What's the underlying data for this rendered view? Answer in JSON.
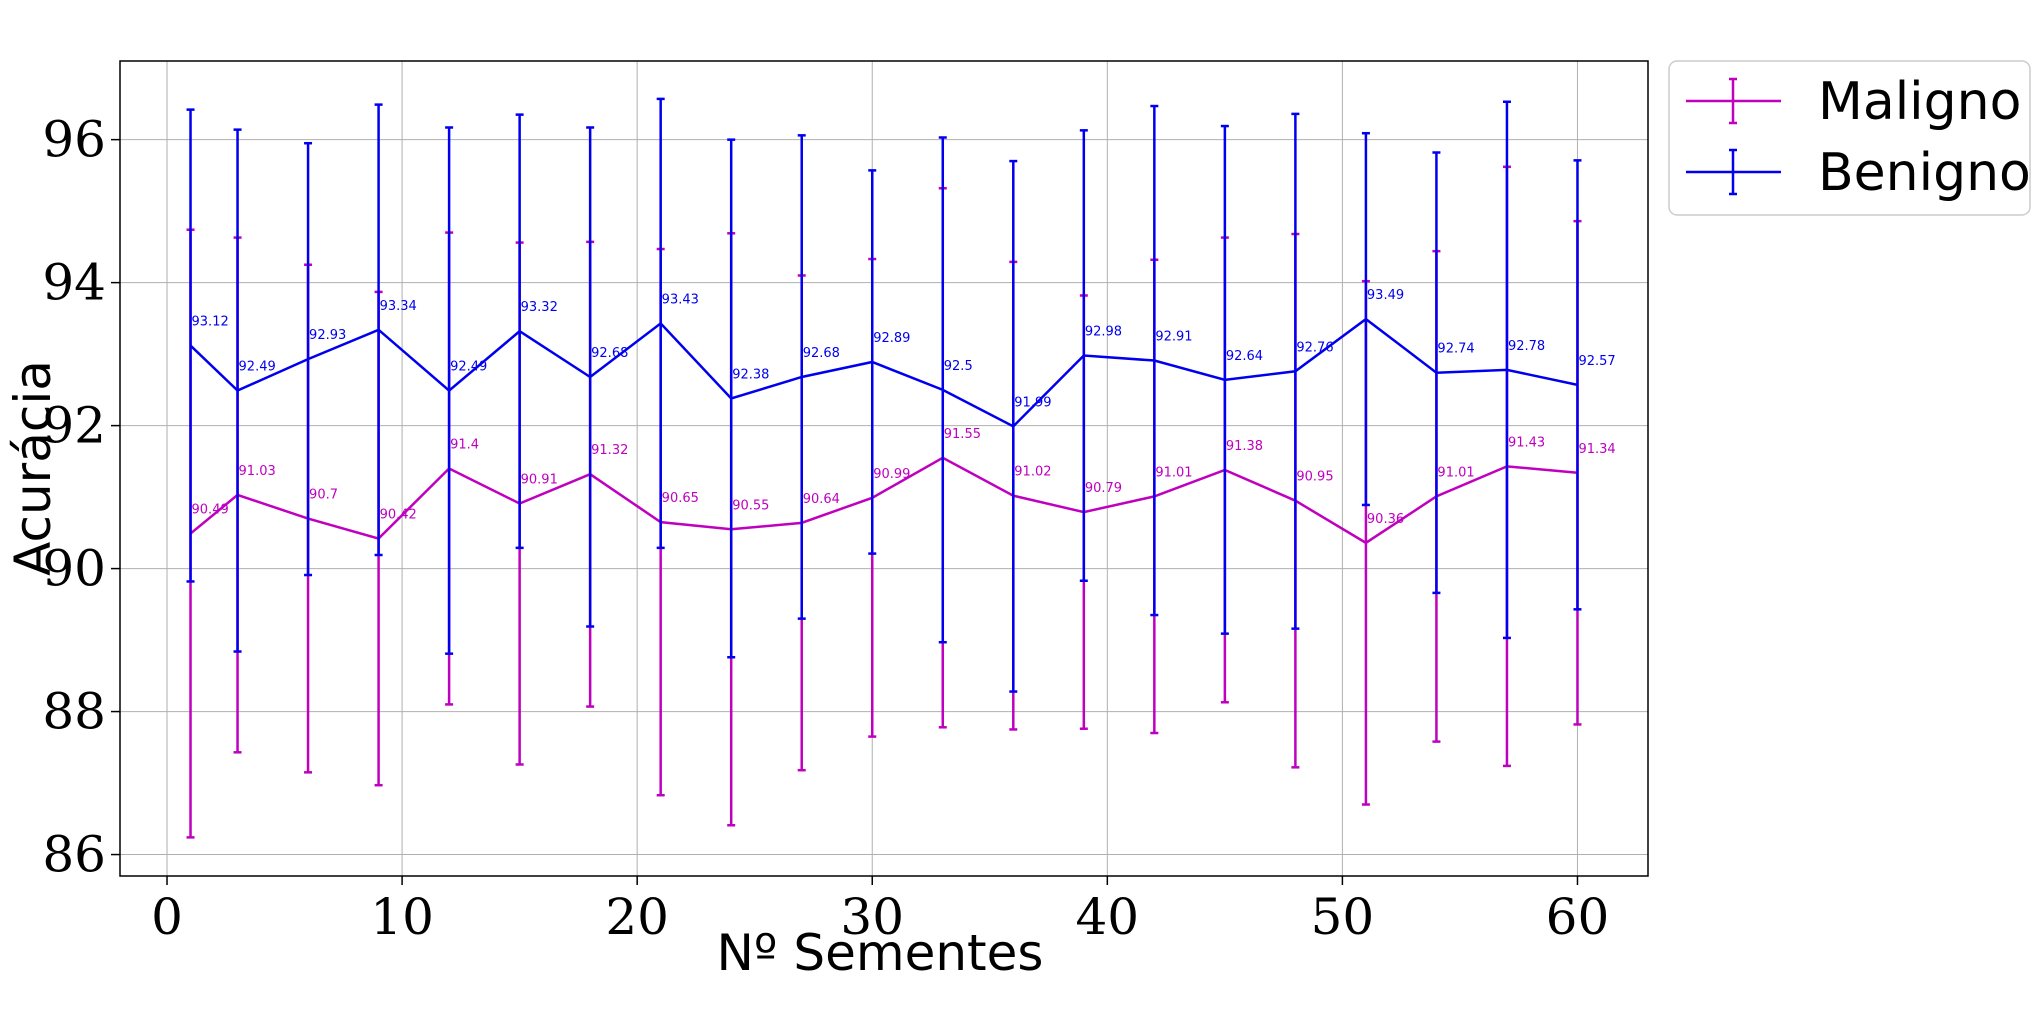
{
  "chart_data": {
    "type": "line",
    "xlabel": "Nº Sementes",
    "ylabel": "Acurácia",
    "xlim": [
      -2,
      63
    ],
    "ylim": [
      85.7,
      97.1
    ],
    "xticks": [
      0,
      10,
      20,
      30,
      40,
      50,
      60
    ],
    "yticks": [
      86,
      88,
      90,
      92,
      94,
      96
    ],
    "grid": true,
    "legend_position": "outside-top-right",
    "x": [
      1,
      3,
      6,
      9,
      12,
      15,
      18,
      21,
      24,
      27,
      30,
      33,
      36,
      39,
      42,
      45,
      48,
      51,
      54,
      57,
      60
    ],
    "series": [
      {
        "name": "Maligno",
        "color": "#bf00bf",
        "values": [
          90.49,
          91.03,
          90.7,
          90.42,
          91.4,
          90.91,
          91.32,
          90.65,
          90.55,
          90.64,
          90.99,
          91.55,
          91.02,
          90.79,
          91.01,
          91.38,
          90.95,
          90.36,
          91.01,
          91.43,
          91.34
        ],
        "labels": [
          "90.49",
          "91.03",
          "90.7",
          "90.42",
          "91.4",
          "90.91",
          "91.32",
          "90.65",
          "90.55",
          "90.64",
          "90.99",
          "91.55",
          "91.02",
          "90.79",
          "91.01",
          "91.38",
          "90.95",
          "90.36",
          "91.01",
          "91.43",
          "91.34"
        ],
        "errors": [
          4.25,
          3.6,
          3.55,
          3.45,
          3.3,
          3.65,
          3.25,
          3.82,
          4.14,
          3.46,
          3.34,
          3.77,
          3.27,
          3.03,
          3.31,
          3.25,
          3.73,
          3.66,
          3.43,
          4.19,
          3.52
        ]
      },
      {
        "name": "Benigno",
        "color": "#0000ee",
        "values": [
          93.12,
          92.49,
          92.93,
          93.34,
          92.49,
          93.32,
          92.68,
          93.43,
          92.38,
          92.68,
          92.89,
          92.5,
          91.99,
          92.98,
          92.91,
          92.64,
          92.76,
          93.49,
          92.74,
          92.78,
          92.57
        ],
        "labels": [
          "93.12",
          "92.49",
          "92.93",
          "93.34",
          "92.49",
          "93.32",
          "92.68",
          "93.43",
          "92.38",
          "92.68",
          "92.89",
          "92.5",
          "91.99",
          "92.98",
          "92.91",
          "92.64",
          "92.76",
          "93.49",
          "92.74",
          "92.78",
          "92.57"
        ],
        "errors": [
          3.3,
          3.65,
          3.02,
          3.15,
          3.68,
          3.03,
          3.49,
          3.14,
          3.62,
          3.38,
          2.68,
          3.53,
          3.71,
          3.15,
          3.56,
          3.55,
          3.6,
          2.6,
          3.08,
          3.75,
          3.14
        ]
      }
    ]
  }
}
